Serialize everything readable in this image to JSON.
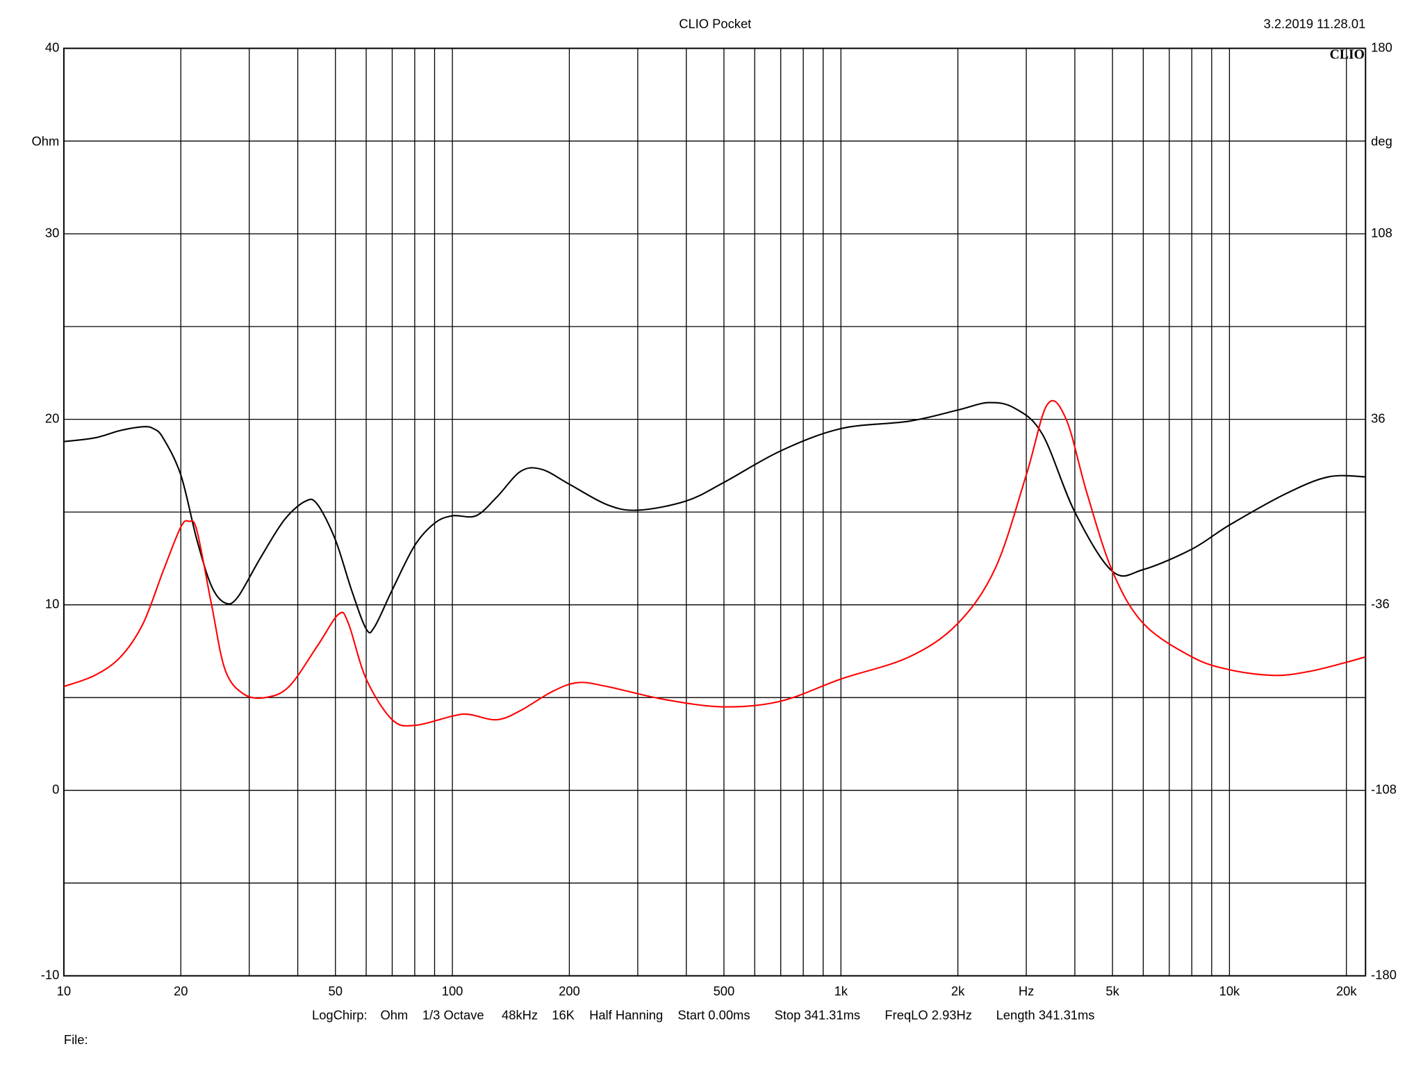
{
  "chart_data": {
    "type": "line",
    "title": "CLIO Pocket",
    "timestamp": "3.2.2019 11.28.01",
    "logo": "CLIO",
    "ylabel": "Ohm",
    "y2label": "deg",
    "xscale": "log",
    "grid": true,
    "xlim": [
      10,
      22400
    ],
    "ylim": [
      -10,
      40
    ],
    "y2lim": [
      -180,
      180
    ],
    "xticks": [
      10,
      20,
      50,
      100,
      200,
      500,
      {
        "value": 1000,
        "label": "1k"
      },
      {
        "value": 2000,
        "label": "2k"
      },
      {
        "value": 3000,
        "label": "Hz"
      },
      {
        "value": 5000,
        "label": "5k"
      },
      {
        "value": 10000,
        "label": "10k"
      },
      {
        "value": 20000,
        "label": "20k"
      }
    ],
    "xgrid": [
      30,
      40,
      60,
      70,
      80,
      90,
      300,
      400,
      600,
      700,
      800,
      900,
      4000,
      6000,
      7000,
      8000,
      9000
    ],
    "yticks": [
      -10,
      0,
      10,
      20,
      30,
      40
    ],
    "ygrid": [
      -5,
      5,
      15,
      25,
      35
    ],
    "y2ticks": [
      -180,
      -108,
      -36,
      36,
      108,
      180
    ],
    "footer": [
      "LogChirp:",
      "Ohm",
      "1/3 Octave",
      "48kHz",
      "16K",
      "Half Hanning",
      "Start 0.00ms",
      "Stop 341.31ms",
      "FreqLO 2.93Hz",
      "Length 341.31ms"
    ],
    "file_label": "File:",
    "series": [
      {
        "color": "#000000",
        "x": [
          10,
          12,
          14,
          16,
          17,
          18,
          20,
          22,
          24,
          26,
          28,
          32,
          37,
          42,
          45,
          50,
          55,
          60,
          63,
          70,
          80,
          90,
          100,
          115,
          130,
          150,
          170,
          200,
          250,
          300,
          400,
          500,
          700,
          1000,
          1500,
          2000,
          2400,
          2800,
          3300,
          4000,
          5000,
          6000,
          8000,
          10000,
          14000,
          18000,
          22400
        ],
        "values": [
          18.8,
          19.0,
          19.4,
          19.6,
          19.5,
          19.0,
          17.0,
          13.5,
          11,
          10.1,
          10.4,
          12.5,
          14.6,
          15.6,
          15.4,
          13.5,
          10.8,
          8.7,
          8.8,
          10.8,
          13.2,
          14.4,
          14.8,
          14.8,
          15.8,
          17.2,
          17.3,
          16.5,
          15.4,
          15.1,
          15.6,
          16.6,
          18.3,
          19.5,
          19.9,
          20.5,
          20.9,
          20.6,
          19.2,
          15.0,
          11.8,
          11.9,
          13.0,
          14.3,
          16.0,
          16.9,
          16.9
        ]
      },
      {
        "color": "#ff0000",
        "axis": "y2",
        "x": [
          10,
          12,
          14,
          16,
          18,
          20,
          21,
          22,
          24,
          26,
          29,
          33,
          38,
          45,
          51,
          54,
          60,
          70,
          80,
          100,
          110,
          130,
          150,
          180,
          210,
          250,
          350,
          500,
          700,
          1000,
          1500,
          2000,
          2500,
          3000,
          3400,
          3800,
          4300,
          5000,
          6000,
          8000,
          10000,
          13000,
          16000,
          20000,
          22400
        ],
        "values": [
          -67.7,
          -63.4,
          -56.2,
          -43.2,
          -23.0,
          -5.8,
          -3.6,
          -7.2,
          -36,
          -61.2,
          -70.6,
          -72,
          -67.7,
          -51.8,
          -39.6,
          -43.2,
          -64.8,
          -80.6,
          -82.8,
          -79.2,
          -78.5,
          -80.6,
          -77.0,
          -69.8,
          -66.2,
          -67.7,
          -72.7,
          -75.6,
          -73.4,
          -64.8,
          -56.2,
          -43.2,
          -21.6,
          14.4,
          41.8,
          36,
          7.2,
          -23.0,
          -43.2,
          -56.2,
          -61.2,
          -63.4,
          -61.9,
          -58.3,
          -56.2
        ]
      }
    ]
  }
}
